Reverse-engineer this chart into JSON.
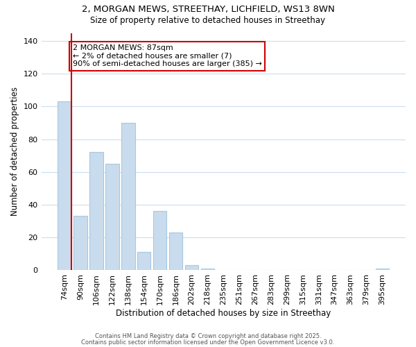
{
  "title_line1": "2, MORGAN MEWS, STREETHAY, LICHFIELD, WS13 8WN",
  "title_line2": "Size of property relative to detached houses in Streethay",
  "xlabel": "Distribution of detached houses by size in Streethay",
  "ylabel": "Number of detached properties",
  "categories": [
    "74sqm",
    "90sqm",
    "106sqm",
    "122sqm",
    "138sqm",
    "154sqm",
    "170sqm",
    "186sqm",
    "202sqm",
    "218sqm",
    "235sqm",
    "251sqm",
    "267sqm",
    "283sqm",
    "299sqm",
    "315sqm",
    "331sqm",
    "347sqm",
    "363sqm",
    "379sqm",
    "395sqm"
  ],
  "values": [
    103,
    33,
    72,
    65,
    90,
    11,
    36,
    23,
    3,
    1,
    0,
    0,
    0,
    0,
    0,
    0,
    0,
    0,
    0,
    0,
    1
  ],
  "bar_color": "#c8dced",
  "bar_edge_color": "#a8c8e0",
  "marker_line_color": "#cc0000",
  "ylim": [
    0,
    145
  ],
  "yticks": [
    0,
    20,
    40,
    60,
    80,
    100,
    120,
    140
  ],
  "annotation_box_text": "2 MORGAN MEWS: 87sqm\n← 2% of detached houses are smaller (7)\n90% of semi-detached houses are larger (385) →",
  "footer_line1": "Contains HM Land Registry data © Crown copyright and database right 2025.",
  "footer_line2": "Contains public sector information licensed under the Open Government Licence v3.0.",
  "background_color": "#ffffff",
  "grid_color": "#ccdded"
}
